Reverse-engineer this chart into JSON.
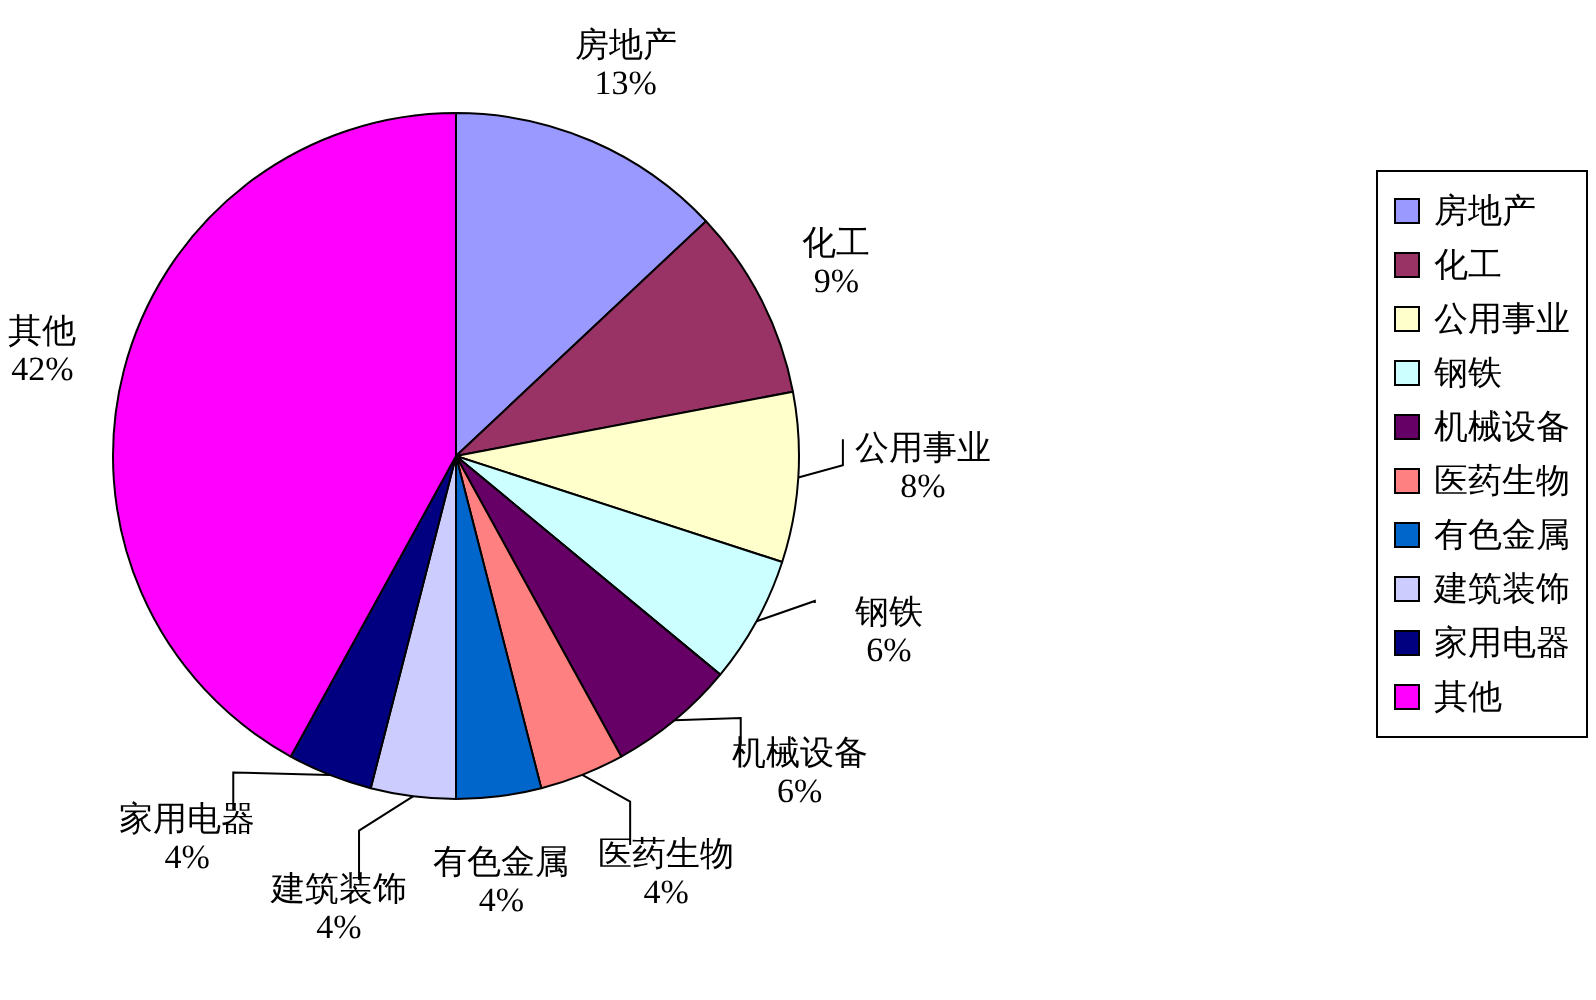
{
  "chart_data": {
    "type": "pie",
    "categories": [
      "房地产",
      "化工",
      "公用事业",
      "钢铁",
      "机械设备",
      "医药生物",
      "有色金属",
      "建筑装饰",
      "家用电器",
      "其他"
    ],
    "values": [
      13,
      9,
      8,
      6,
      6,
      4,
      4,
      4,
      4,
      42
    ],
    "value_labels": [
      "13%",
      "9%",
      "8%",
      "6%",
      "6%",
      "4%",
      "4%",
      "4%",
      "4%",
      "42%"
    ],
    "colors": [
      "#9999ff",
      "#993366",
      "#ffffcc",
      "#ccffff",
      "#660066",
      "#ff8080",
      "#0066cc",
      "#ccccff",
      "#000080",
      "#ff00ff"
    ],
    "legend": "right"
  }
}
